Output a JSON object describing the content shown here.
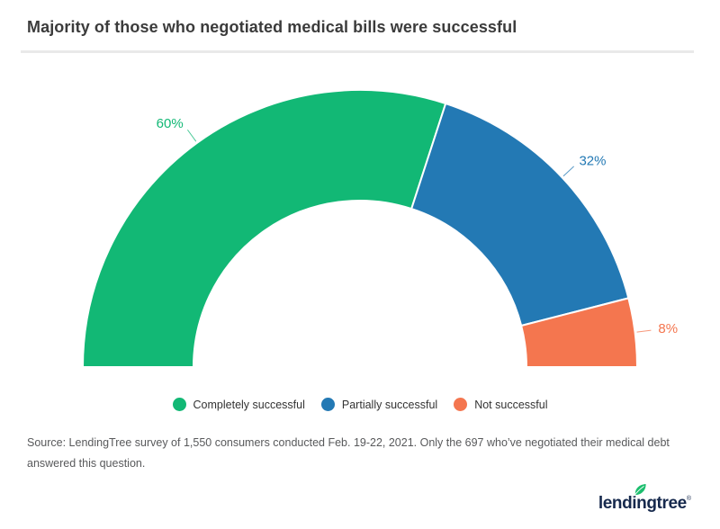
{
  "header": {
    "title": "Majority of those who negotiated medical bills were successful"
  },
  "chart_data": {
    "type": "pie",
    "variant": "half-donut",
    "title": "Majority of those who negotiated medical bills were successful",
    "categories": [
      "Completely successful",
      "Partially successful",
      "Not successful"
    ],
    "values": [
      60,
      32,
      8
    ],
    "labels": [
      "60%",
      "32%",
      "8%"
    ],
    "colors": [
      "#12B875",
      "#2379B4",
      "#F4764F"
    ],
    "unit": "%",
    "start_angle_deg": 180,
    "end_angle_deg": 0,
    "inner_radius_ratio": 0.6,
    "legend_position": "bottom",
    "data_labels": "outside-with-connector"
  },
  "legend": {
    "items": [
      {
        "label": "Completely successful",
        "color": "#12B875"
      },
      {
        "label": "Partially successful",
        "color": "#2379B4"
      },
      {
        "label": "Not successful",
        "color": "#F4764F"
      }
    ]
  },
  "source": {
    "text": "Source: LendingTree survey of 1,550 consumers conducted Feb. 19-22, 2021. Only the 697 who’ve negotiated their medical debt answered this question."
  },
  "branding": {
    "logo_text": "lendingtree",
    "trademark": "®",
    "logo_color": "#16294d",
    "leaf_color": "#1cbe6e"
  }
}
